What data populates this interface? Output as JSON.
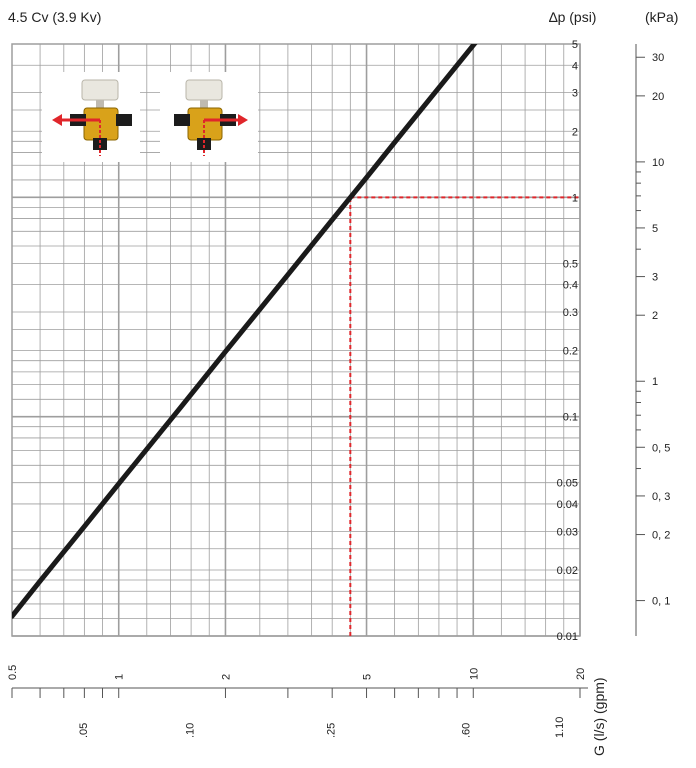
{
  "header": {
    "title": "4.5 Cv (3.9 Kv)",
    "dp_unit_label": "∆p (psi)",
    "kpa_unit_label": "(kPa)"
  },
  "chart_data": {
    "type": "line",
    "title": "4.5 Cv (3.9 Kv)",
    "xlabel": "G (l/s)  (gpm)",
    "ylabel": "∆p (psi)",
    "x_scale": "log",
    "y_scale": "log",
    "xlim_gpm": [
      0.5,
      20
    ],
    "ylim_psi": [
      0.01,
      5
    ],
    "grid": true,
    "series": [
      {
        "x": [
          0.5,
          0.6,
          0.8,
          1,
          1.5,
          2,
          3,
          4,
          5,
          6,
          8,
          10,
          12.9
        ],
        "y": [
          0.0123,
          0.0178,
          0.0316,
          0.0494,
          0.111,
          0.198,
          0.444,
          0.79,
          1.23,
          1.78,
          3.16,
          4.94,
          8.2
        ]
      }
    ],
    "reference": {
      "x_gpm": 4.5,
      "y_psi": 1,
      "x_label": "2",
      "y_label": "1",
      "color": "#e0262b"
    },
    "psi_ticks": [
      "5",
      "4",
      "3",
      "2",
      "1",
      "0.5",
      "0.4",
      "0.3",
      "0.2",
      "0.1",
      "0.05",
      "0.04",
      "0.03",
      "0.02",
      "0.01"
    ],
    "psi_values": [
      5,
      4,
      3,
      2,
      1,
      0.5,
      0.4,
      0.3,
      0.2,
      0.1,
      0.05,
      0.04,
      0.03,
      0.02,
      0.01
    ],
    "kpa_ticks": [
      "30",
      "20",
      "10",
      "5",
      "3",
      "2",
      "1",
      "0, 5",
      "0, 3",
      "0, 2",
      "0, 1"
    ],
    "kpa_values": [
      30,
      20,
      10,
      5,
      3,
      2,
      1,
      0.5,
      0.3,
      0.2,
      0.1
    ],
    "gpm_ticks": [
      "0.5",
      "1",
      "2",
      "5",
      "10",
      "20"
    ],
    "gpm_values": [
      0.5,
      1,
      2,
      5,
      10,
      20
    ],
    "ls_ticks": [
      ".05",
      ".10",
      ".25",
      ".60",
      "1.10"
    ],
    "ls_values": [
      0.05,
      0.1,
      0.25,
      0.6,
      1.1
    ],
    "line_color": "#1a1a1a",
    "grid_color": "#9e9e9e"
  }
}
